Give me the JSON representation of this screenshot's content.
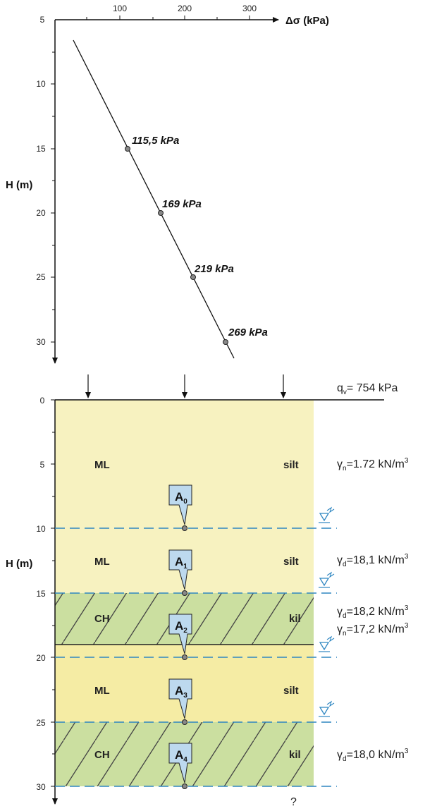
{
  "top_chart": {
    "xlabel": "Δσ (kPa)",
    "ylabel": "H (m)",
    "x_ticks": [
      "100",
      "200",
      "300"
    ],
    "y_ticks": [
      "5",
      "10",
      "15",
      "20",
      "25",
      "30"
    ],
    "points": [
      {
        "depth": 15,
        "stress": 115.5,
        "label": "115,5 kPa"
      },
      {
        "depth": 20,
        "stress": 169,
        "label": "169 kPa"
      },
      {
        "depth": 25,
        "stress": 219,
        "label": "219 kPa"
      },
      {
        "depth": 30,
        "stress": 269,
        "label": "269 kPa"
      }
    ]
  },
  "bottom_profile": {
    "ylabel": "H (m)",
    "y_ticks": [
      "0",
      "5",
      "10",
      "15",
      "20",
      "25",
      "30"
    ],
    "load_label": "q",
    "load_sub": "v",
    "load_value": "= 754 kPa",
    "unknown_mark": "?",
    "layers": [
      {
        "code": "ML",
        "name": "silt",
        "p1": {
          "sym": "γ",
          "sub": "n",
          "val": "=1.72 kN/m",
          "sup": "3"
        }
      },
      {
        "code": "ML",
        "name": "silt",
        "p1": {
          "sym": "γ",
          "sub": "d",
          "val": "=18,1 kN/m",
          "sup": "3"
        }
      },
      {
        "code": "CH",
        "name": "kil",
        "p1": {
          "sym": "γ",
          "sub": "d",
          "val": "=18,2 kN/m",
          "sup": "3"
        },
        "p2": {
          "sym": "γ",
          "sub": "n",
          "val": "=17,2 kN/m",
          "sup": "3"
        }
      },
      {
        "code": "ML",
        "name": "silt"
      },
      {
        "code": "CH",
        "name": "kil",
        "p1": {
          "sym": "γ",
          "sub": "d",
          "val": "=18,0 kN/m",
          "sup": "3"
        }
      }
    ],
    "points": [
      {
        "letter": "A",
        "sub": "0"
      },
      {
        "letter": "A",
        "sub": "1"
      },
      {
        "letter": "A",
        "sub": "2"
      },
      {
        "letter": "A",
        "sub": "3"
      },
      {
        "letter": "A",
        "sub": "4"
      }
    ]
  },
  "colors": {
    "silt_fill": "#f7f2c0",
    "silt_fill_2": "#f5eca4",
    "clay_fill": "#cbdfa0",
    "water_line": "#2e86c1",
    "callout_fill": "#bdd9ee"
  }
}
